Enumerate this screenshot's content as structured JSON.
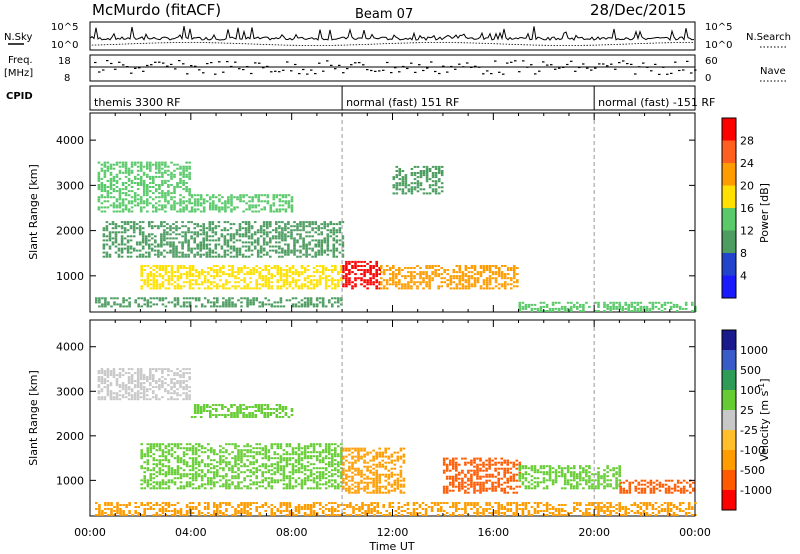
{
  "header": {
    "station": "McMurdo (fitACF)",
    "beam": "Beam 07",
    "date": "28/Dec/2015"
  },
  "side_labels": {
    "nsky": "N.Sky",
    "freq": "Freq.",
    "freq_unit": "[MHz]",
    "cpid": "CPID",
    "nsearch": "N.Search",
    "nave": "Nave"
  },
  "strip_ticks": {
    "nsky_top": "10^5",
    "nsky_bottom": "10^0",
    "nsearch_top": "10^5",
    "nsearch_bottom": "10^0",
    "freq_top": "18",
    "freq_bottom": "8",
    "nave_top": "60",
    "nave_bottom": "0"
  },
  "cpid_segments": [
    {
      "label": "themis 3300 RF",
      "start_hour": 0
    },
    {
      "label": "normal (fast) 151 RF",
      "start_hour": 10
    },
    {
      "label": "normal (fast) -151 RF",
      "start_hour": 20
    }
  ],
  "colors": {
    "power": [
      "#1a1aff",
      "#2244cc",
      "#4d9c60",
      "#59c96a",
      "#ffe000",
      "#ff9c00",
      "#ff6020",
      "#ff0000"
    ],
    "velocity": [
      "#ff0000",
      "#ff5a00",
      "#ff9c00",
      "#ffbf2a",
      "#c8c8c8",
      "#66cc33",
      "#2e9c56",
      "#3a5cc8",
      "#1a1a8c"
    ]
  },
  "chart_data": [
    {
      "type": "heatmap",
      "panel": "power",
      "ylabel": "Slant Range [km]",
      "xlabel": "Time UT",
      "xlim_hours": [
        0,
        24
      ],
      "ylim": [
        200,
        4600
      ],
      "xtick_labels": [
        "00:00",
        "04:00",
        "08:00",
        "12:00",
        "16:00",
        "20:00",
        "00:00"
      ],
      "xticks_hours": [
        0,
        4,
        8,
        12,
        16,
        20,
        24
      ],
      "ytick_labels": [
        "1000",
        "2000",
        "3000",
        "4000"
      ],
      "yticks": [
        1000,
        2000,
        3000,
        4000
      ],
      "colorbar_label": "Power [dB]",
      "colorbar_ticks": [
        "4",
        "8",
        "12",
        "16",
        "20",
        "24",
        "28"
      ],
      "colorbar_range": [
        0,
        30
      ],
      "echo_regions": [
        {
          "t0": 0.2,
          "t1": 10.0,
          "r0": 300,
          "r1": 500,
          "value": 10
        },
        {
          "t0": 2.0,
          "t1": 10.0,
          "r0": 700,
          "r1": 1200,
          "value": 18
        },
        {
          "t0": 0.3,
          "t1": 4.0,
          "r0": 2400,
          "r1": 3500,
          "value": 12
        },
        {
          "t0": 4.0,
          "t1": 8.0,
          "r0": 2400,
          "r1": 2800,
          "value": 14
        },
        {
          "t0": 0.5,
          "t1": 10.0,
          "r0": 1400,
          "r1": 2200,
          "value": 8
        },
        {
          "t0": 10.0,
          "t1": 11.5,
          "r0": 700,
          "r1": 1300,
          "value": 28
        },
        {
          "t0": 11.5,
          "t1": 17.0,
          "r0": 700,
          "r1": 1200,
          "value": 22
        },
        {
          "t0": 12.0,
          "t1": 14.0,
          "r0": 2800,
          "r1": 3400,
          "value": 10
        },
        {
          "t0": 17.0,
          "t1": 24.0,
          "r0": 200,
          "r1": 400,
          "value": 14
        }
      ]
    },
    {
      "type": "heatmap",
      "panel": "velocity",
      "ylabel": "Slant Range [km]",
      "xlabel": "Time UT",
      "xlim_hours": [
        0,
        24
      ],
      "ylim": [
        200,
        4600
      ],
      "xtick_labels": [
        "00:00",
        "04:00",
        "08:00",
        "12:00",
        "16:00",
        "20:00",
        "00:00"
      ],
      "xticks_hours": [
        0,
        4,
        8,
        12,
        16,
        20,
        24
      ],
      "ytick_labels": [
        "1000",
        "2000",
        "3000",
        "4000"
      ],
      "yticks": [
        1000,
        2000,
        3000,
        4000
      ],
      "colorbar_label": "Velocity [m s^-1]",
      "colorbar_ticks": [
        "1000",
        "500",
        "100",
        "25",
        "-25",
        "-100",
        "-500",
        "-1000"
      ],
      "echo_regions": [
        {
          "t0": 0.2,
          "t1": 24.0,
          "r0": 200,
          "r1": 500,
          "value": -100
        },
        {
          "t0": 2.0,
          "t1": 10.0,
          "r0": 800,
          "r1": 1800,
          "value": 100
        },
        {
          "t0": 0.3,
          "t1": 4.0,
          "r0": 2800,
          "r1": 3500,
          "value": 0
        },
        {
          "t0": 4.0,
          "t1": 8.0,
          "r0": 2400,
          "r1": 2700,
          "value": 100
        },
        {
          "t0": 10.0,
          "t1": 12.5,
          "r0": 700,
          "r1": 1700,
          "value": -100
        },
        {
          "t0": 14.0,
          "t1": 17.0,
          "r0": 700,
          "r1": 1500,
          "value": -500
        },
        {
          "t0": 17.0,
          "t1": 21.0,
          "r0": 800,
          "r1": 1300,
          "value": 100
        },
        {
          "t0": 21.0,
          "t1": 24.0,
          "r0": 700,
          "r1": 1000,
          "value": -500
        }
      ]
    }
  ]
}
